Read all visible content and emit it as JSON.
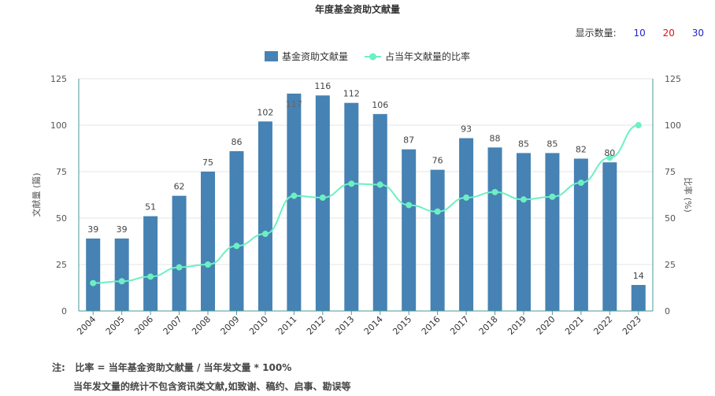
{
  "title": "年度基金资助文献量",
  "display_count": {
    "label": "显示数量:",
    "options": [
      "10",
      "20",
      "30"
    ]
  },
  "notes": {
    "prefix": "注:",
    "line1": "比率 = 当年基金资助文献量 / 当年发文量 * 100%",
    "line2": "当年发文量的统计不包含资讯类文献,如致谢、稿约、启事、勘误等"
  },
  "colors": {
    "bar": "#4682b4",
    "line": "#6cf0c2",
    "axis": "#4a9a9a"
  },
  "chart_data": {
    "type": "bar+line",
    "categories": [
      "2004",
      "2005",
      "2006",
      "2007",
      "2008",
      "2009",
      "2010",
      "2011",
      "2012",
      "2013",
      "2014",
      "2015",
      "2016",
      "2017",
      "2018",
      "2019",
      "2020",
      "2021",
      "2022",
      "2023"
    ],
    "series": [
      {
        "name": "基金资助文献量",
        "type": "bar",
        "axis": "left",
        "values": [
          39,
          39,
          51,
          62,
          75,
          86,
          102,
          117,
          116,
          112,
          106,
          87,
          76,
          93,
          88,
          85,
          85,
          82,
          80,
          14
        ]
      },
      {
        "name": "占当年文献量的比率",
        "type": "line",
        "axis": "right",
        "values": [
          15,
          16,
          18.5,
          23.5,
          25,
          35,
          41.5,
          62,
          61,
          68.5,
          68,
          57,
          53.5,
          61,
          64,
          60,
          61.5,
          69,
          82.5,
          100
        ]
      }
    ],
    "ylabel_left": "文献量 (篇)",
    "ylabel_right": "比率 (%)",
    "ylim_left": [
      0,
      125
    ],
    "ylim_right": [
      0,
      125
    ],
    "yticks": [
      0,
      25,
      50,
      75,
      100,
      125
    ],
    "grid": true,
    "legend_position": "top-center"
  }
}
